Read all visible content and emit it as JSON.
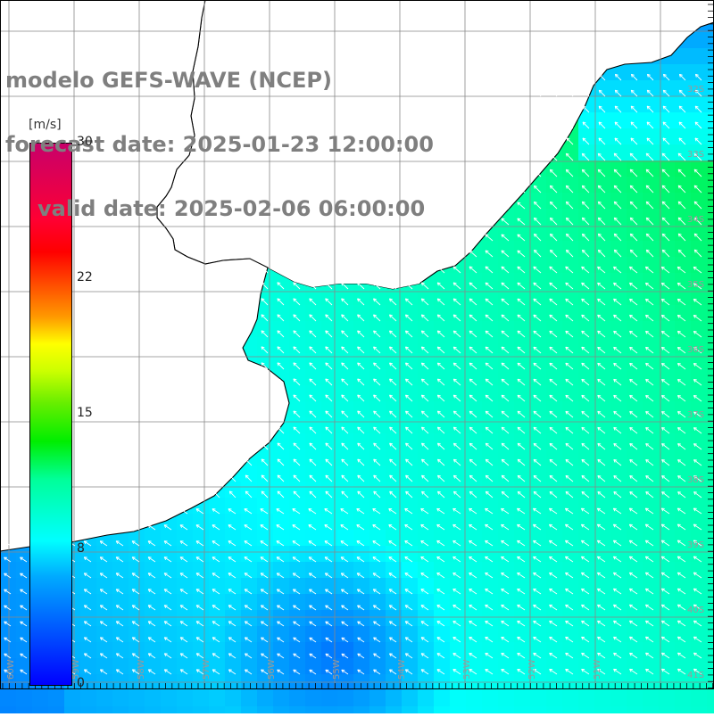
{
  "title": {
    "line1": "modelo GEFS-WAVE (NCEP)",
    "line2": "forecast date: 2025-01-23 12:00:00",
    "line3": "valid date: 2025-02-06 06:00:00"
  },
  "colorbar": {
    "unit": "[m/s]",
    "ticks": [
      {
        "label": "30",
        "value": 30
      },
      {
        "label": "22",
        "value": 22
      },
      {
        "label": "15",
        "value": 15
      },
      {
        "label": "8",
        "value": 8
      },
      {
        "label": "0",
        "value": 0
      }
    ],
    "range": [
      0,
      30
    ]
  },
  "map": {
    "projection": "lat-lon",
    "lon_range": [
      -61,
      -50
    ],
    "lat_range": [
      -42,
      -31
    ],
    "lon_labels": [
      "60W",
      "59W",
      "58W",
      "57W",
      "56W",
      "55W",
      "54W",
      "53W",
      "52W",
      "51W"
    ],
    "lat_labels": [
      "32S",
      "33S",
      "34S",
      "35S",
      "36S",
      "37S",
      "38S",
      "39S",
      "40S",
      "41S"
    ],
    "field": "wind speed and direction",
    "colors": {
      "land": "#ffffff",
      "coastline": "#000000",
      "grid": "#888888",
      "arrow": "#ffffff",
      "title_text": "#7f7f7f",
      "speed_low": "#0000ff",
      "speed_mid": "#00ffff",
      "speed_high": "#00ee00"
    }
  }
}
